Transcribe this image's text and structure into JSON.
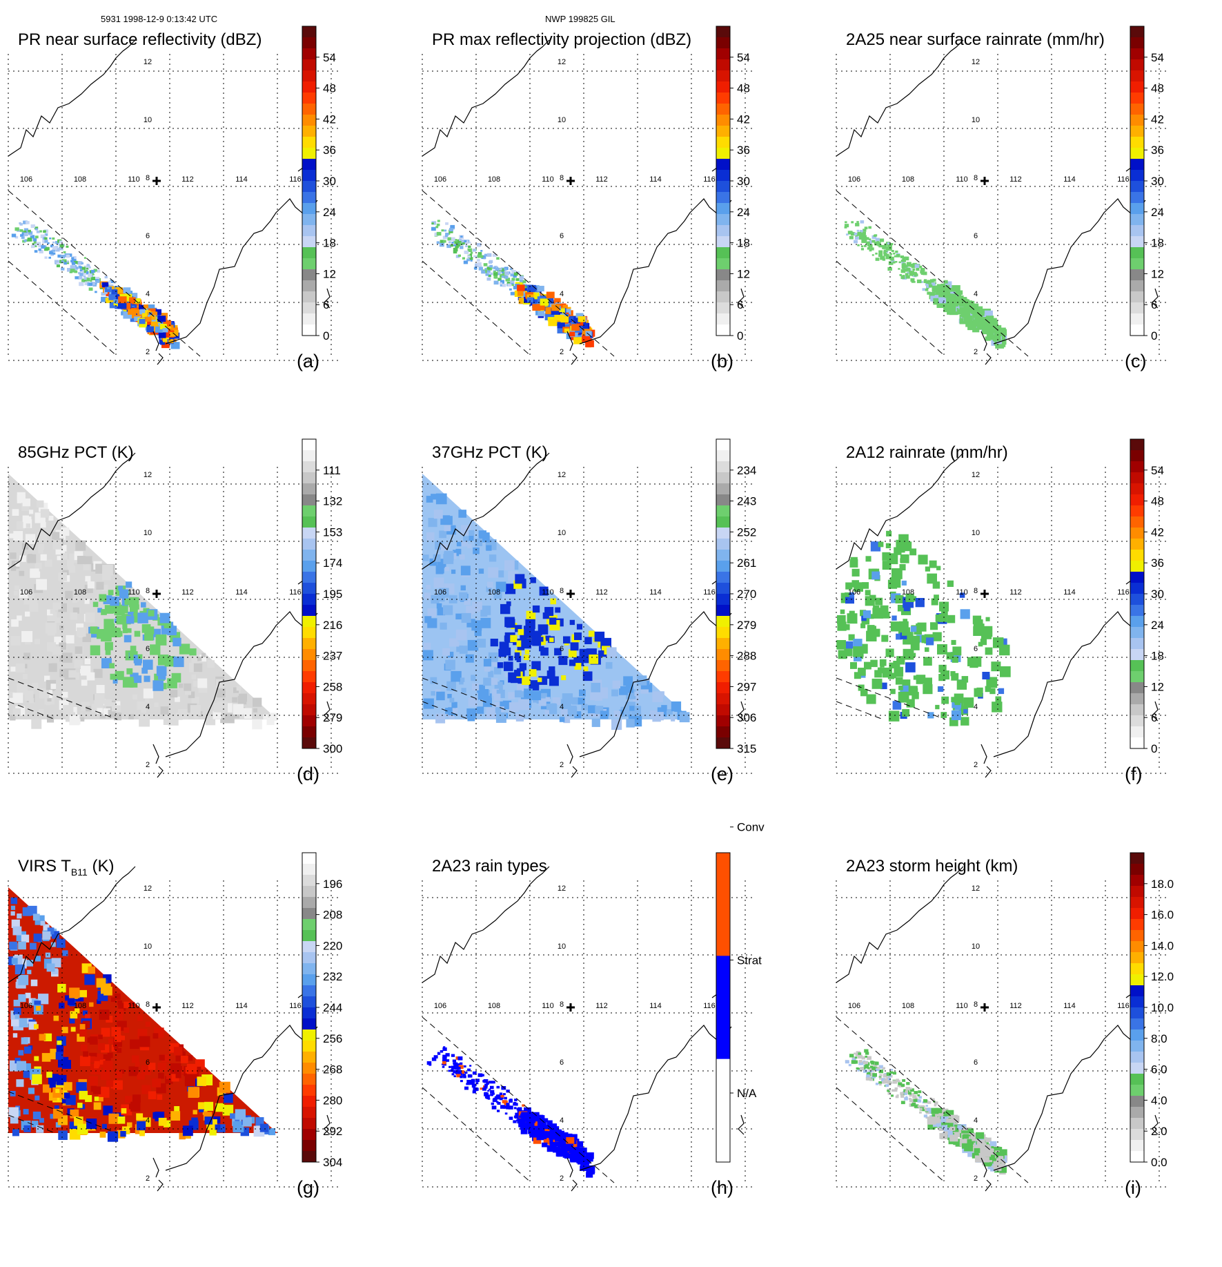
{
  "header": {
    "left": "5931 1998-12-9 0:13:42 UTC",
    "center": "NWP 199825 GIL"
  },
  "grid": {
    "lon_labels": [
      "106",
      "108",
      "110",
      "112",
      "114",
      "116"
    ],
    "lat_labels": [
      "12",
      "10",
      "8",
      "6",
      "4",
      "2"
    ]
  },
  "colormaps": {
    "ref": [
      "#ffffff",
      "#f0f0f0",
      "#dcdcdc",
      "#c8c8c8",
      "#aaaaaa",
      "#888888",
      "#6ecf6e",
      "#56c156",
      "#c8d6f4",
      "#a8c4f0",
      "#80b4ee",
      "#5aa0ec",
      "#3a74e6",
      "#1e50dc",
      "#0a2ed4",
      "#0010c8",
      "#f0f000",
      "#ffdc00",
      "#ffb000",
      "#ff8c00",
      "#ff6400",
      "#ff3c00",
      "#f01e00",
      "#d81400",
      "#c00a00",
      "#a00000",
      "#7a0000",
      "#5a0a0a"
    ],
    "inv": [
      "#5a0a0a",
      "#7a0000",
      "#a00000",
      "#c00a00",
      "#d81400",
      "#f01e00",
      "#ff3c00",
      "#ff6400",
      "#ff8c00",
      "#ffb000",
      "#ffdc00",
      "#f0f000",
      "#0010c8",
      "#0a2ed4",
      "#1e50dc",
      "#3a74e6",
      "#5aa0ec",
      "#80b4ee",
      "#a8c4f0",
      "#c8d6f4",
      "#56c156",
      "#6ecf6e",
      "#888888",
      "#aaaaaa",
      "#c8c8c8",
      "#dcdcdc",
      "#f0f0f0",
      "#ffffff"
    ],
    "raintype": [
      "#ffffff",
      "#ffffff",
      "#ffffff",
      "#ffffff",
      "#ffffff",
      "#ffffff",
      "#ffffff",
      "#ffffff",
      "#ffffff",
      "#ffffff",
      "#0000ff",
      "#0000ff",
      "#0000ff",
      "#0000ff",
      "#0000ff",
      "#0000ff",
      "#0000ff",
      "#0000ff",
      "#0000ff",
      "#0000ff",
      "#ff5000",
      "#ff5000",
      "#ff5000",
      "#ff5000",
      "#ff5000",
      "#ff5000",
      "#ff5000",
      "#ff5000",
      "#ff5000",
      "#ff5000"
    ]
  },
  "panels": [
    {
      "id": "a",
      "title": "PR near surface reflectivity (dBZ)",
      "letter": "(a)",
      "colormap": "ref",
      "ticks": [
        "0",
        "6",
        "12",
        "18",
        "24",
        "30",
        "36",
        "42",
        "48",
        "54"
      ]
    },
    {
      "id": "b",
      "title": "PR max reflectivity projection (dBZ)",
      "letter": "(b)",
      "colormap": "ref",
      "ticks": [
        "0",
        "6",
        "12",
        "18",
        "24",
        "30",
        "36",
        "42",
        "48",
        "54"
      ]
    },
    {
      "id": "c",
      "title": "2A25 near surface rainrate (mm/hr)",
      "letter": "(c)",
      "colormap": "ref",
      "ticks": [
        "0",
        "6",
        "12",
        "18",
        "24",
        "30",
        "36",
        "42",
        "48",
        "54"
      ]
    },
    {
      "id": "d",
      "title": "85GHz PCT (K)",
      "letter": "(d)",
      "colormap": "inv",
      "ticks": [
        "300",
        "279",
        "258",
        "237",
        "216",
        "195",
        "174",
        "153",
        "132",
        "111"
      ]
    },
    {
      "id": "e",
      "title": "37GHz PCT (K)",
      "letter": "(e)",
      "colormap": "inv",
      "ticks": [
        "315",
        "306",
        "297",
        "288",
        "279",
        "270",
        "261",
        "252",
        "243",
        "234"
      ]
    },
    {
      "id": "f",
      "title": "2A12 rainrate (mm/hr)",
      "letter": "(f)",
      "colormap": "ref",
      "ticks": [
        "0",
        "6",
        "12",
        "18",
        "24",
        "30",
        "36",
        "42",
        "48",
        "54"
      ]
    },
    {
      "id": "g",
      "title_main": "VIRS T",
      "title_sub": "B11",
      "title_tail": " (K)",
      "letter": "(g)",
      "colormap": "inv",
      "ticks": [
        "304",
        "292",
        "280",
        "268",
        "256",
        "244",
        "232",
        "220",
        "208",
        "196"
      ]
    },
    {
      "id": "h",
      "title": "2A23 rain types",
      "letter": "(h)",
      "colormap": "raintype",
      "ticks": [
        "N/A",
        "Strat",
        "Conv"
      ]
    },
    {
      "id": "i",
      "title": "2A23 storm height (km)",
      "letter": "(i)",
      "colormap": "ref",
      "ticks": [
        "0.0",
        "2.0",
        "4.0",
        "6.0",
        "8.0",
        "10.0",
        "12.0",
        "14.0",
        "16.0",
        "18.0"
      ]
    }
  ]
}
